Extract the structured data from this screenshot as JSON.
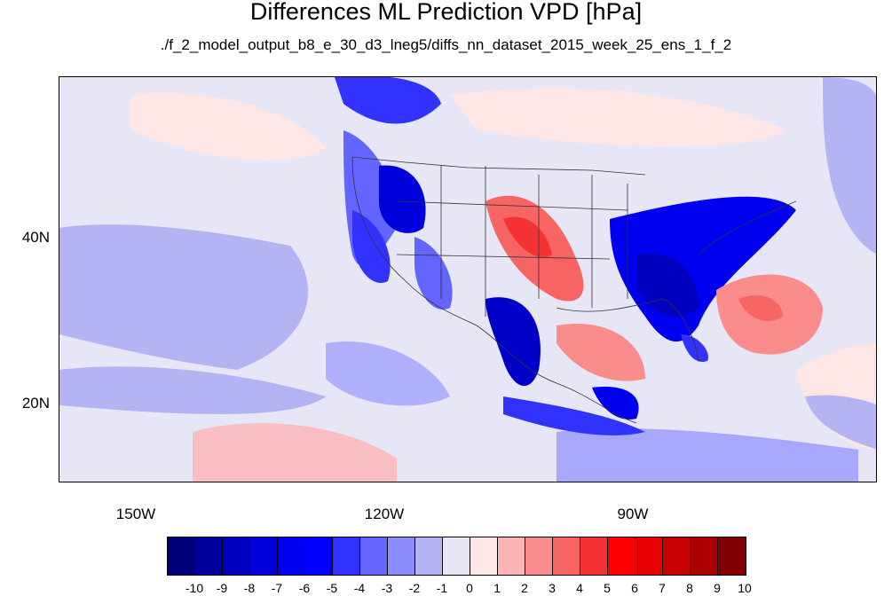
{
  "title": "Differences ML Prediction VPD [hPa]",
  "subtitle": "./f_2_model_output_b8_e_30_d3_lneg5/diffs_nn_dataset_2015_week_25_ens_1_f_2",
  "map": {
    "lat_labels": [
      "40N",
      "20N"
    ],
    "lon_labels": [
      "150W",
      "120W",
      "90W"
    ],
    "background_value_color": "#e6e6f7"
  },
  "colorbar": {
    "labels": [
      "-10",
      "-9",
      "-8",
      "-7",
      "-6",
      "-5",
      "-4",
      "-3",
      "-2",
      "-1",
      "0",
      "1",
      "2",
      "3",
      "4",
      "5",
      "6",
      "7",
      "8",
      "9",
      "10"
    ],
    "colors": [
      "#00007a",
      "#00009e",
      "#0000bf",
      "#0000dc",
      "#0000f0",
      "#0000ff",
      "#3232ff",
      "#6464ff",
      "#8c8cff",
      "#b4b4f5",
      "#e6e6f7",
      "#fde6e6",
      "#fcb4b4",
      "#fa8c8c",
      "#f76464",
      "#f53232",
      "#ff0000",
      "#e60000",
      "#c80000",
      "#aa0000",
      "#820000"
    ]
  }
}
